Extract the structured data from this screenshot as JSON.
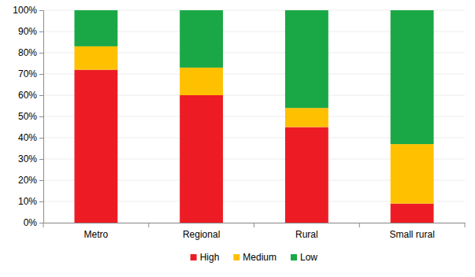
{
  "chart_data": {
    "type": "bar",
    "stacked": true,
    "grid": true,
    "categories": [
      "Metro",
      "Regional",
      "Rural",
      "Small rural"
    ],
    "series": [
      {
        "name": "High",
        "color": "#ed1c24",
        "values": [
          72,
          60,
          45,
          9
        ]
      },
      {
        "name": "Medium",
        "color": "#ffc000",
        "values": [
          11,
          13,
          9,
          28
        ]
      },
      {
        "name": "Low",
        "color": "#1aa846",
        "values": [
          17,
          27,
          46,
          63
        ]
      }
    ],
    "ylim": [
      0,
      100
    ],
    "yticks": [
      {
        "value": 0,
        "label": "0%"
      },
      {
        "value": 10,
        "label": "10%"
      },
      {
        "value": 20,
        "label": "20%"
      },
      {
        "value": 30,
        "label": "30%"
      },
      {
        "value": 40,
        "label": "40%"
      },
      {
        "value": 50,
        "label": "50%"
      },
      {
        "value": 60,
        "label": "60%"
      },
      {
        "value": 70,
        "label": "70%"
      },
      {
        "value": 80,
        "label": "80%"
      },
      {
        "value": 90,
        "label": "90%"
      },
      {
        "value": 100,
        "label": "100%"
      }
    ],
    "legend": "bottom"
  }
}
